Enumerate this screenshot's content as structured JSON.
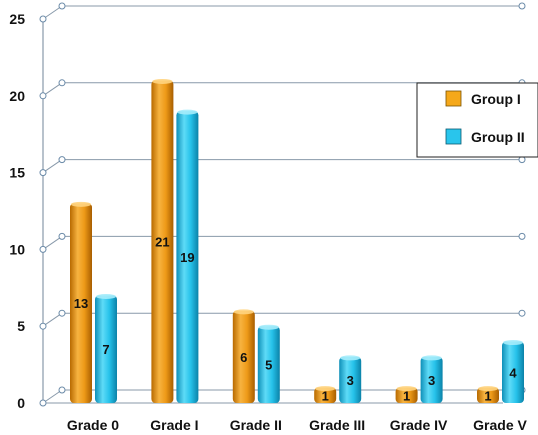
{
  "chart_data": {
    "type": "bar",
    "categories": [
      "Grade 0",
      "Grade I",
      "Grade II",
      "Grade III",
      "Grade IV",
      "Grade V"
    ],
    "series": [
      {
        "name": "Group I",
        "values": [
          13,
          21,
          6,
          1,
          1,
          1
        ],
        "color": "#F0A020"
      },
      {
        "name": "Group II",
        "values": [
          7,
          19,
          5,
          3,
          3,
          4
        ],
        "color": "#29C5EC"
      }
    ],
    "data_labels": [
      [
        "13",
        "21",
        "6",
        "1",
        "1",
        "1"
      ],
      [
        "7",
        "19",
        "5",
        "3",
        "3",
        "4"
      ]
    ],
    "y_ticks": [
      "0",
      "5",
      "10",
      "15",
      "20",
      "25"
    ],
    "ylim": [
      0,
      25
    ],
    "grid": true,
    "legend_position": "top-right",
    "style": "3d-cylinder"
  }
}
